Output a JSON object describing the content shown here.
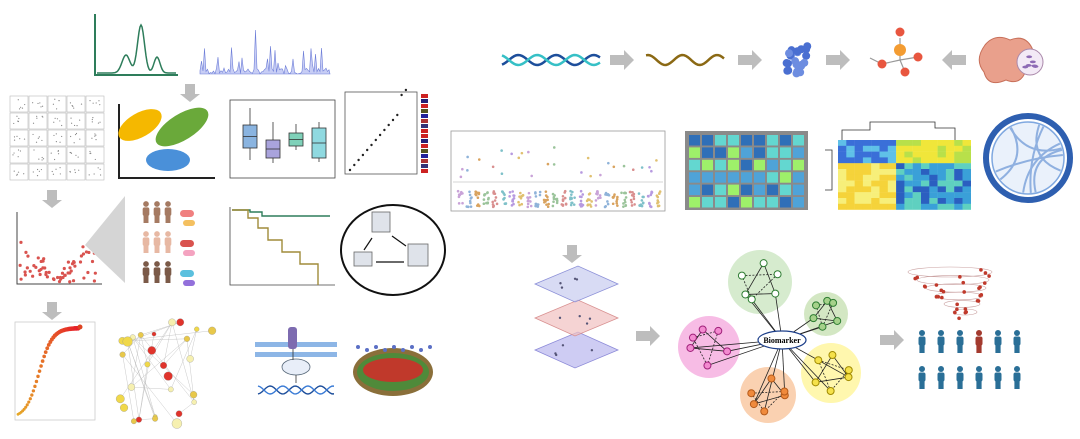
{
  "diagram": {
    "center_label": "Biomarker"
  }
}
